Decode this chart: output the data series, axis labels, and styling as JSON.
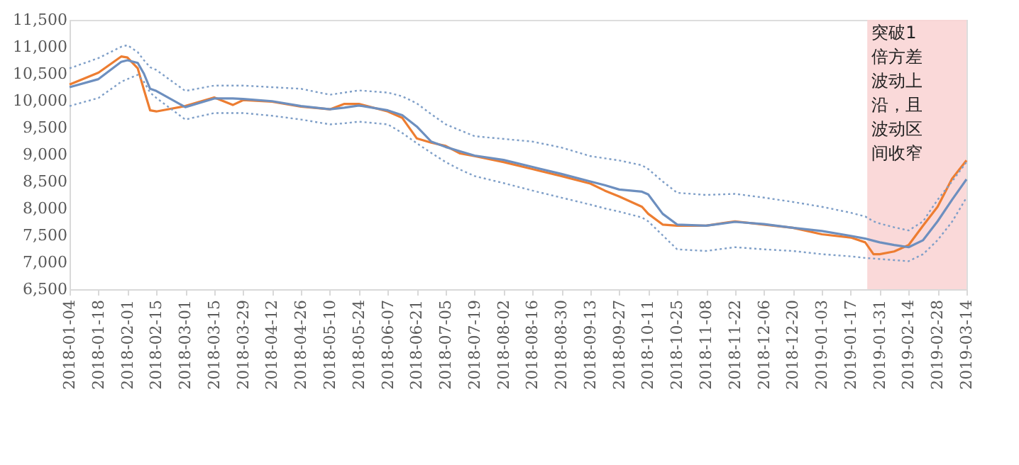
{
  "chart_data": {
    "type": "line",
    "x": [
      "2018-01-04",
      "2018-01-18",
      "2018-01-29",
      "2018-02-01",
      "2018-02-06",
      "2018-02-09",
      "2018-02-12",
      "2018-02-15",
      "2018-03-01",
      "2018-03-15",
      "2018-03-24",
      "2018-03-29",
      "2018-04-12",
      "2018-04-26",
      "2018-05-10",
      "2018-05-17",
      "2018-05-24",
      "2018-06-07",
      "2018-06-14",
      "2018-06-21",
      "2018-06-28",
      "2018-07-05",
      "2018-07-12",
      "2018-07-19",
      "2018-08-02",
      "2018-08-16",
      "2018-08-30",
      "2018-09-13",
      "2018-09-20",
      "2018-09-27",
      "2018-10-08",
      "2018-10-11",
      "2018-10-18",
      "2018-10-25",
      "2018-11-08",
      "2018-11-22",
      "2018-12-06",
      "2018-12-20",
      "2019-01-03",
      "2019-01-17",
      "2019-01-24",
      "2019-01-28",
      "2019-01-31",
      "2019-02-07",
      "2019-02-14",
      "2019-02-21",
      "2019-02-28",
      "2019-03-07",
      "2019-03-14"
    ],
    "series": [
      {
        "color": "#ed7d31",
        "line_style": "solid",
        "values": [
          10300,
          10520,
          10820,
          10800,
          10600,
          10200,
          9820,
          9800,
          9900,
          10060,
          9920,
          10010,
          9980,
          9890,
          9840,
          9940,
          9940,
          9800,
          9680,
          9300,
          9220,
          9160,
          9020,
          8970,
          8860,
          8730,
          8600,
          8460,
          8330,
          8220,
          8030,
          7900,
          7700,
          7680,
          7680,
          7760,
          7700,
          7640,
          7520,
          7460,
          7370,
          7150,
          7150,
          7200,
          7320,
          7680,
          8030,
          8550,
          8890
        ]
      },
      {
        "color": "#6d8fbf",
        "line_style": "solid",
        "values": [
          10250,
          10400,
          10720,
          10750,
          10700,
          10500,
          10220,
          10180,
          9880,
          10040,
          10040,
          10030,
          9990,
          9900,
          9840,
          9870,
          9910,
          9820,
          9730,
          9520,
          9240,
          9140,
          9060,
          8980,
          8900,
          8770,
          8640,
          8500,
          8430,
          8350,
          8310,
          8260,
          7900,
          7700,
          7680,
          7750,
          7710,
          7640,
          7580,
          7490,
          7440,
          7400,
          7370,
          7320,
          7280,
          7410,
          7760,
          8160,
          8540
        ]
      },
      {
        "color": "#7f9fc8",
        "line_style": "dotted",
        "values": [
          10600,
          10790,
          11000,
          11030,
          10900,
          10750,
          10620,
          10570,
          10180,
          10280,
          10280,
          10280,
          10250,
          10220,
          10110,
          10150,
          10190,
          10150,
          10080,
          9950,
          9750,
          9560,
          9450,
          9340,
          9290,
          9240,
          9130,
          8970,
          8930,
          8890,
          8800,
          8730,
          8500,
          8290,
          8250,
          8270,
          8200,
          8120,
          8030,
          7920,
          7850,
          7760,
          7720,
          7650,
          7590,
          7760,
          8160,
          8500,
          8860
        ]
      },
      {
        "color": "#7f9fc8",
        "line_style": "dotted",
        "values": [
          9900,
          10050,
          10350,
          10400,
          10480,
          10350,
          10150,
          10050,
          9650,
          9770,
          9770,
          9770,
          9720,
          9650,
          9560,
          9580,
          9610,
          9560,
          9400,
          9210,
          9030,
          8860,
          8720,
          8600,
          8470,
          8330,
          8200,
          8070,
          8000,
          7940,
          7830,
          7760,
          7500,
          7240,
          7210,
          7280,
          7240,
          7210,
          7150,
          7110,
          7080,
          7070,
          7060,
          7040,
          7020,
          7150,
          7410,
          7750,
          8200
        ]
      }
    ],
    "ylim": [
      6500,
      11500
    ],
    "yticks": [
      {
        "value": 6500,
        "label": "6,500"
      },
      {
        "value": 7000,
        "label": "7,000"
      },
      {
        "value": 7500,
        "label": "7,500"
      },
      {
        "value": 8000,
        "label": "8,000"
      },
      {
        "value": 8500,
        "label": "8,500"
      },
      {
        "value": 9000,
        "label": "9,000"
      },
      {
        "value": 9500,
        "label": "9,500"
      },
      {
        "value": 10000,
        "label": "10,000"
      },
      {
        "value": 10500,
        "label": "10,500"
      },
      {
        "value": 11000,
        "label": "11,000"
      },
      {
        "value": 11500,
        "label": "11,500"
      }
    ],
    "xlim": [
      "2018-01-04",
      "2019-03-14"
    ],
    "xticks": [
      "2018-01-04",
      "2018-01-18",
      "2018-02-01",
      "2018-02-15",
      "2018-03-01",
      "2018-03-15",
      "2018-03-29",
      "2018-04-12",
      "2018-04-26",
      "2018-05-10",
      "2018-05-24",
      "2018-06-07",
      "2018-06-21",
      "2018-07-05",
      "2018-07-19",
      "2018-08-02",
      "2018-08-16",
      "2018-08-30",
      "2018-09-13",
      "2018-09-27",
      "2018-10-11",
      "2018-10-25",
      "2018-11-08",
      "2018-11-22",
      "2018-12-06",
      "2018-12-20",
      "2019-01-03",
      "2019-01-17",
      "2019-01-31",
      "2019-02-14",
      "2019-02-28",
      "2019-03-14"
    ],
    "bands": [
      {
        "axis": "x",
        "from": "2019-01-25",
        "to": "2019-03-14",
        "label": "突破1倍方差波动上沿，且波动区间收窄",
        "color": "#f9d5d5"
      }
    ],
    "grid": false,
    "marker": "none"
  }
}
